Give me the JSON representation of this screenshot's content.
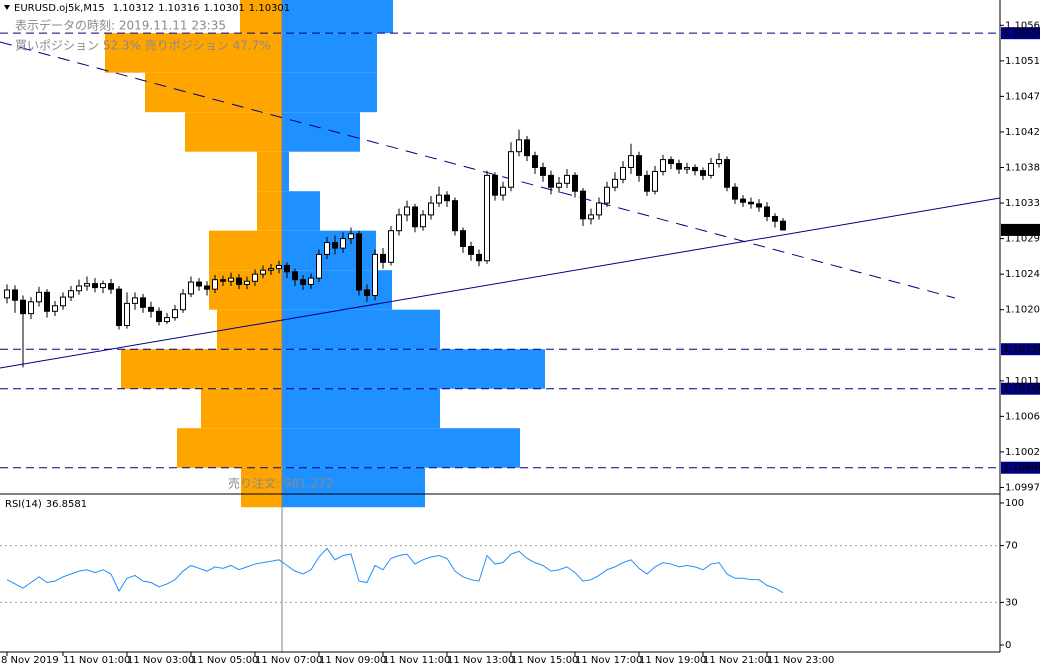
{
  "chart_data": [
    {
      "type": "candlestick",
      "symbol": "EURUSD.oj5k,M15",
      "info_time": "表示データの時刻: 2019.11.11 23:35",
      "info_position": "買いポジション 52.3% 売りポジション 47.7%",
      "up_color": "#ffffff",
      "down_color": "#000000",
      "open": [
        1.10215,
        1.10225,
        1.10212,
        1.10195,
        1.1021,
        1.10222,
        1.10198,
        1.10205,
        1.10216,
        1.10224,
        1.1023,
        1.10233,
        1.10228,
        1.10233,
        1.10226,
        1.1018,
        1.10208,
        1.10215,
        1.10203,
        1.10198,
        1.10185,
        1.1019,
        1.102,
        1.1022,
        1.10235,
        1.1023,
        1.10226,
        1.10238,
        1.10236,
        1.1024,
        1.10232,
        1.10236,
        1.10245,
        1.1025,
        1.10252,
        1.10256,
        1.10248,
        1.10238,
        1.10232,
        1.1024,
        1.1027,
        1.10285,
        1.10278,
        1.1029,
        1.10296,
        1.10225,
        1.10218,
        1.1027,
        1.1026,
        1.103,
        1.1032,
        1.1033,
        1.10305,
        1.1032,
        1.10335,
        1.10345,
        1.10338,
        1.103,
        1.1028,
        1.1027,
        1.10262,
        1.1037,
        1.10345,
        1.10355,
        1.104,
        1.10415,
        1.10395,
        1.1038,
        1.1037,
        1.10355,
        1.1036,
        1.1037,
        1.1035,
        1.10315,
        1.1032,
        1.10335,
        1.10355,
        1.10365,
        1.1038,
        1.10395,
        1.1037,
        1.1035,
        1.10375,
        1.1039,
        1.10385,
        1.10378,
        1.1038,
        1.10376,
        1.1037,
        1.10385,
        1.1039,
        1.10355,
        1.1034,
        1.10336,
        1.10334,
        1.1033,
        1.10318,
        1.10312
      ],
      "high": [
        1.10232,
        1.10231,
        1.10218,
        1.10216,
        1.10229,
        1.10226,
        1.10211,
        1.10222,
        1.1023,
        1.10238,
        1.10242,
        1.1024,
        1.10237,
        1.10239,
        1.1023,
        1.10222,
        1.10222,
        1.1022,
        1.1021,
        1.10203,
        1.10196,
        1.10206,
        1.10226,
        1.10242,
        1.1024,
        1.10236,
        1.10244,
        1.10243,
        1.10247,
        1.10245,
        1.10242,
        1.10251,
        1.10256,
        1.10258,
        1.10262,
        1.1026,
        1.10252,
        1.10244,
        1.10246,
        1.10276,
        1.10292,
        1.10294,
        1.10298,
        1.10304,
        1.103,
        1.10232,
        1.10276,
        1.10278,
        1.10306,
        1.10328,
        1.10338,
        1.10334,
        1.10326,
        1.10344,
        1.10356,
        1.1035,
        1.10342,
        1.10304,
        1.10286,
        1.10276,
        1.10376,
        1.10374,
        1.10362,
        1.10412,
        1.10428,
        1.1042,
        1.104,
        1.10386,
        1.10376,
        1.10368,
        1.10378,
        1.10374,
        1.10354,
        1.10328,
        1.10342,
        1.10362,
        1.10374,
        1.10388,
        1.1041,
        1.104,
        1.10376,
        1.10382,
        1.10396,
        1.10394,
        1.1039,
        1.10386,
        1.10384,
        1.1038,
        1.10392,
        1.10398,
        1.10394,
        1.1036,
        1.10345,
        1.10342,
        1.1034,
        1.10336,
        1.10322,
        1.10316
      ],
      "low": [
        1.10208,
        1.10196,
        1.10127,
        1.10188,
        1.10204,
        1.1019,
        1.10192,
        1.102,
        1.10211,
        1.10219,
        1.10224,
        1.10222,
        1.10221,
        1.1022,
        1.10175,
        1.10176,
        1.102,
        1.10196,
        1.1019,
        1.1018,
        1.10182,
        1.10186,
        1.10196,
        1.10216,
        1.10224,
        1.10218,
        1.10221,
        1.1023,
        1.1023,
        1.10226,
        1.10226,
        1.1023,
        1.1024,
        1.10244,
        1.10246,
        1.1024,
        1.1023,
        1.10225,
        1.10226,
        1.10235,
        1.10264,
        1.1027,
        1.10272,
        1.10283,
        1.10218,
        1.1021,
        1.10212,
        1.10252,
        1.10256,
        1.10294,
        1.10312,
        1.10298,
        1.103,
        1.10314,
        1.1033,
        1.1033,
        1.10294,
        1.10272,
        1.10262,
        1.10255,
        1.10258,
        1.10338,
        1.10338,
        1.1035,
        1.10394,
        1.10388,
        1.10372,
        1.10362,
        1.10346,
        1.10348,
        1.10354,
        1.10342,
        1.10306,
        1.10308,
        1.10314,
        1.1033,
        1.1035,
        1.1036,
        1.10372,
        1.10362,
        1.10344,
        1.10346,
        1.1037,
        1.10378,
        1.10372,
        1.10372,
        1.1037,
        1.10364,
        1.10366,
        1.1038,
        1.1035,
        1.10334,
        1.1033,
        1.10328,
        1.10324,
        1.10312,
        1.10304,
        1.10301
      ],
      "close": [
        1.10225,
        1.10212,
        1.10195,
        1.1021,
        1.10222,
        1.10198,
        1.10205,
        1.10216,
        1.10224,
        1.1023,
        1.10233,
        1.10228,
        1.10233,
        1.10226,
        1.1018,
        1.10208,
        1.10215,
        1.10203,
        1.10198,
        1.10185,
        1.1019,
        1.102,
        1.1022,
        1.10235,
        1.1023,
        1.10226,
        1.10238,
        1.10236,
        1.1024,
        1.10232,
        1.10236,
        1.10245,
        1.1025,
        1.10252,
        1.10256,
        1.10248,
        1.10238,
        1.10232,
        1.1024,
        1.1027,
        1.10285,
        1.10278,
        1.1029,
        1.10296,
        1.10225,
        1.10218,
        1.1027,
        1.1026,
        1.103,
        1.1032,
        1.1033,
        1.10305,
        1.1032,
        1.10335,
        1.10345,
        1.10338,
        1.103,
        1.1028,
        1.1027,
        1.10262,
        1.1037,
        1.10345,
        1.10355,
        1.104,
        1.10415,
        1.10395,
        1.1038,
        1.1037,
        1.10355,
        1.1036,
        1.1037,
        1.1035,
        1.10315,
        1.1032,
        1.10335,
        1.10355,
        1.10365,
        1.1038,
        1.10395,
        1.1037,
        1.1035,
        1.10375,
        1.1039,
        1.10385,
        1.10378,
        1.1038,
        1.10376,
        1.1037,
        1.10385,
        1.1039,
        1.10355,
        1.1034,
        1.10336,
        1.10334,
        1.1033,
        1.10318,
        1.10312,
        1.10301
      ],
      "xticks": [
        {
          "value": 0,
          "label": "8 Nov 2019"
        },
        {
          "value": 7,
          "label": "11 Nov 01:00"
        },
        {
          "value": 15,
          "label": "11 Nov 03:00"
        },
        {
          "value": 23,
          "label": "11 Nov 05:00"
        },
        {
          "value": 31,
          "label": "11 Nov 07:00"
        },
        {
          "value": 39,
          "label": "11 Nov 09:00"
        },
        {
          "value": 47,
          "label": "11 Nov 11:00"
        },
        {
          "value": 55,
          "label": "11 Nov 13:00"
        },
        {
          "value": 63,
          "label": "11 Nov 15:00"
        },
        {
          "value": 71,
          "label": "11 Nov 17:00"
        },
        {
          "value": 79,
          "label": "11 Nov 19:00"
        },
        {
          "value": 87,
          "label": "11 Nov 21:00"
        },
        {
          "value": 95,
          "label": "11 Nov 23:00"
        }
      ],
      "ylim": [
        1.09968,
        1.10592
      ],
      "yticks": [
        {
          "value": 1.1056,
          "label": "1.10560"
        },
        1.10515,
        {
          "value": 1.1047,
          "label": "1.10470"
        },
        1.10425,
        {
          "value": 1.1038,
          "label": "1.10380"
        },
        1.10335,
        {
          "value": 1.1029,
          "label": "1.10290"
        },
        1.10245,
        {
          "value": 1.102,
          "label": "1.10200"
        },
        {
          "value": 1.1011,
          "label": "1.10110"
        },
        1.10065,
        {
          "value": 1.1002,
          "label": "1.10020"
        },
        1.09975
      ],
      "price_lines": [
        {
          "value": 1.1055,
          "label": "1.10550"
        },
        {
          "value": 1.1015,
          "label": "1.10150"
        },
        {
          "value": 1.101,
          "label": "1.10100"
        },
        {
          "value": 1.1,
          "label": "1.10000"
        }
      ],
      "line_color": "#000080",
      "orderbook": {
        "label": "売り注文: 981.272",
        "buy_color": "#ffa500",
        "sell_color": "#1e90ff",
        "xlim": [
          0,
          2.82
        ],
        "bins": [
          1.106,
          1.1055,
          1.105,
          1.1045,
          1.104,
          1.1035,
          1.103,
          1.1025,
          1.102,
          1.1015,
          1.101,
          1.1005,
          1.1,
          1.0995
        ],
        "buy": [
          0.42,
          1.77,
          1.37,
          0.97,
          0.25,
          0.25,
          0.73,
          0.73,
          0.65,
          1.61,
          0.81,
          1.05,
          0.41
        ],
        "sell": [
          1.11,
          0.95,
          0.95,
          0.78,
          0.07,
          0.38,
          0.94,
          1.1,
          1.58,
          2.63,
          1.58,
          2.38,
          1.43
        ]
      }
    },
    {
      "type": "line",
      "title": "RSI(14)",
      "color": "#1e90ff",
      "values": [
        46,
        43,
        40,
        44,
        48,
        44,
        45,
        48,
        50,
        52,
        53,
        51,
        53,
        50,
        38,
        47,
        49,
        45,
        44,
        41,
        43,
        46,
        52,
        56,
        54,
        52,
        55,
        54,
        56,
        53,
        55,
        57,
        58,
        59,
        60,
        56,
        52,
        50,
        53,
        62,
        68,
        60,
        63,
        64,
        45,
        44,
        56,
        53,
        61,
        63,
        64,
        57,
        60,
        62,
        63,
        61,
        52,
        48,
        46,
        45,
        63,
        57,
        58,
        64,
        66,
        61,
        58,
        56,
        52,
        53,
        55,
        51,
        45,
        46,
        49,
        53,
        55,
        58,
        60,
        54,
        50,
        55,
        58,
        57,
        55,
        56,
        55,
        53,
        57,
        58,
        50,
        47,
        47,
        46,
        46,
        42,
        40,
        36.8581
      ],
      "ylim": [
        -4.9,
        104.9
      ],
      "yticks": [
        0,
        30,
        70,
        100
      ],
      "levels": [
        30,
        70
      ]
    }
  ]
}
